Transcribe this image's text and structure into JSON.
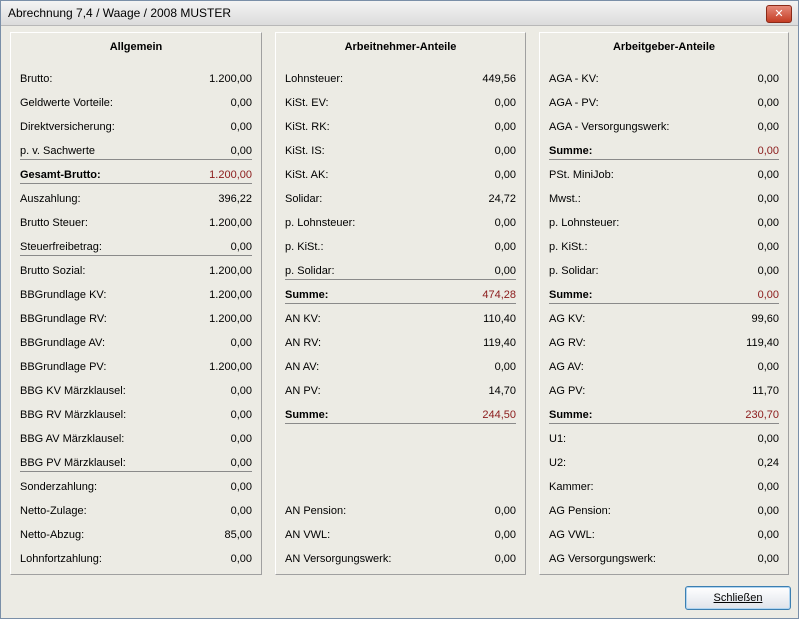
{
  "window": {
    "title": "Abrechnung 7,4 / Waage / 2008 MUSTER",
    "close_glyph": "✕"
  },
  "panels": {
    "allgemein": {
      "title": "Allgemein",
      "rows": [
        {
          "label": "Brutto:",
          "value": "1.200,00"
        },
        {
          "label": "Geldwerte Vorteile:",
          "value": "0,00"
        },
        {
          "label": "Direktversicherung:",
          "value": "0,00"
        },
        {
          "label": "p. v. Sachwerte",
          "value": "0,00"
        },
        {
          "label": "Gesamt-Brutto:",
          "value": "1.200,00"
        },
        {
          "label": "Auszahlung:",
          "value": "396,22"
        },
        {
          "label": "Brutto Steuer:",
          "value": "1.200,00"
        },
        {
          "label": "Steuerfreibetrag:",
          "value": "0,00"
        },
        {
          "label": "Brutto Sozial:",
          "value": "1.200,00"
        },
        {
          "label": "BBGrundlage KV:",
          "value": "1.200,00"
        },
        {
          "label": "BBGrundlage RV:",
          "value": "1.200,00"
        },
        {
          "label": "BBGrundlage AV:",
          "value": "0,00"
        },
        {
          "label": "BBGrundlage PV:",
          "value": "1.200,00"
        },
        {
          "label": "BBG KV Märzklausel:",
          "value": "0,00"
        },
        {
          "label": "BBG RV Märzklausel:",
          "value": "0,00"
        },
        {
          "label": "BBG AV Märzklausel:",
          "value": "0,00"
        },
        {
          "label": "BBG PV Märzklausel:",
          "value": "0,00"
        },
        {
          "label": "Sonderzahlung:",
          "value": "0,00"
        },
        {
          "label": "Netto-Zulage:",
          "value": "0,00"
        },
        {
          "label": "Netto-Abzug:",
          "value": "85,00"
        },
        {
          "label": "Lohnfortzahlung:",
          "value": "0,00"
        }
      ]
    },
    "arbeitnehmer": {
      "title": "Arbeitnehmer-Anteile",
      "rows": [
        {
          "label": "Lohnsteuer:",
          "value": "449,56"
        },
        {
          "label": "KiSt. EV:",
          "value": "0,00"
        },
        {
          "label": "KiSt. RK:",
          "value": "0,00"
        },
        {
          "label": "KiSt. IS:",
          "value": "0,00"
        },
        {
          "label": "KiSt. AK:",
          "value": "0,00"
        },
        {
          "label": "Solidar:",
          "value": "24,72"
        },
        {
          "label": "p. Lohnsteuer:",
          "value": "0,00"
        },
        {
          "label": "p. KiSt.:",
          "value": "0,00"
        },
        {
          "label": "p. Solidar:",
          "value": "0,00"
        },
        {
          "label": "Summe:",
          "value": "474,28"
        },
        {
          "label": "AN KV:",
          "value": "110,40"
        },
        {
          "label": "AN RV:",
          "value": "119,40"
        },
        {
          "label": "AN AV:",
          "value": "0,00"
        },
        {
          "label": "AN PV:",
          "value": "14,70"
        },
        {
          "label": "Summe:",
          "value": "244,50"
        },
        {
          "label": "AN Pension:",
          "value": "0,00"
        },
        {
          "label": "AN VWL:",
          "value": "0,00"
        },
        {
          "label": "AN Versorgungswerk:",
          "value": "0,00"
        }
      ]
    },
    "arbeitgeber": {
      "title": "Arbeitgeber-Anteile",
      "rows": [
        {
          "label": "AGA - KV:",
          "value": "0,00"
        },
        {
          "label": "AGA - PV:",
          "value": "0,00"
        },
        {
          "label": "AGA - Versorgungswerk:",
          "value": "0,00"
        },
        {
          "label": "Summe:",
          "value": "0,00"
        },
        {
          "label": "PSt. MiniJob:",
          "value": "0,00"
        },
        {
          "label": "Mwst.:",
          "value": "0,00"
        },
        {
          "label": "p. Lohnsteuer:",
          "value": "0,00"
        },
        {
          "label": "p. KiSt.:",
          "value": "0,00"
        },
        {
          "label": "p. Solidar:",
          "value": "0,00"
        },
        {
          "label": "Summe:",
          "value": "0,00"
        },
        {
          "label": "AG KV:",
          "value": "99,60"
        },
        {
          "label": "AG RV:",
          "value": "119,40"
        },
        {
          "label": "AG AV:",
          "value": "0,00"
        },
        {
          "label": "AG PV:",
          "value": "11,70"
        },
        {
          "label": "Summe:",
          "value": "230,70"
        },
        {
          "label": "U1:",
          "value": "0,00"
        },
        {
          "label": "U2:",
          "value": "0,24"
        },
        {
          "label": "Kammer:",
          "value": "0,00"
        },
        {
          "label": "AG Pension:",
          "value": "0,00"
        },
        {
          "label": "AG VWL:",
          "value": "0,00"
        },
        {
          "label": "AG Versorgungswerk:",
          "value": "0,00"
        }
      ]
    }
  },
  "footer": {
    "close_button_label": "Schließen"
  },
  "colors": {
    "sum_value": "#8b1a1a",
    "background": "#ecebe4"
  }
}
